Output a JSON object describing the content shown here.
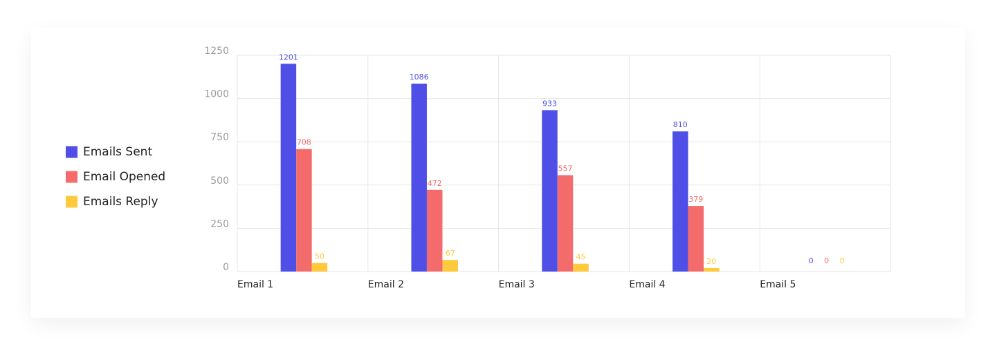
{
  "chart_data": {
    "type": "bar",
    "categories": [
      "Email 1",
      "Email 2",
      "Email 3",
      "Email 4",
      "Email 5"
    ],
    "series": [
      {
        "name": "Emails Sent",
        "color": "#4f4fe8",
        "values": [
          1201,
          1086,
          933,
          810,
          0
        ]
      },
      {
        "name": "Email Opened",
        "color": "#f46b6b",
        "values": [
          708,
          472,
          557,
          379,
          0
        ]
      },
      {
        "name": "Emails Reply",
        "color": "#ffc93c",
        "values": [
          50,
          67,
          45,
          20,
          0
        ]
      }
    ],
    "ylim": [
      0,
      1250
    ],
    "yticks": [
      0,
      250,
      500,
      750,
      1000,
      1250
    ],
    "grid": true,
    "legend": "left"
  }
}
